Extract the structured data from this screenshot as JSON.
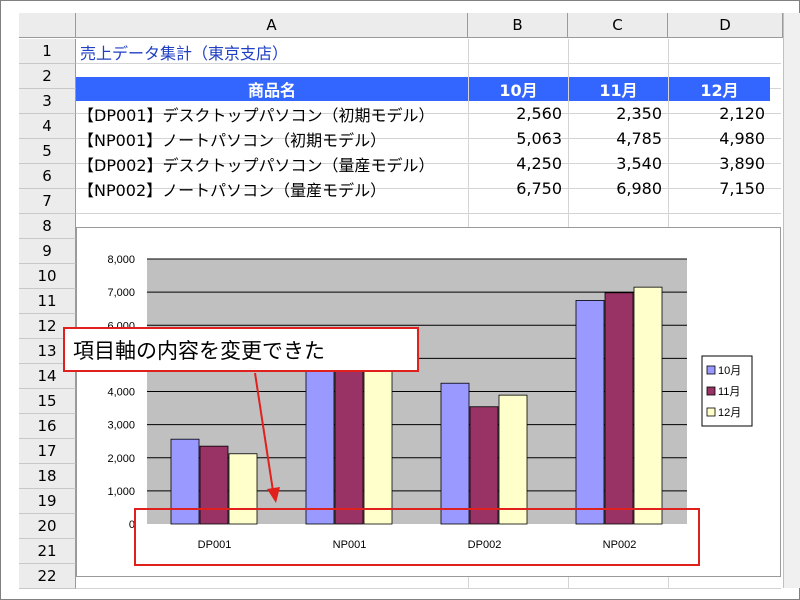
{
  "columns": [
    "A",
    "B",
    "C",
    "D"
  ],
  "rows": [
    "1",
    "2",
    "3",
    "4",
    "5",
    "6",
    "7",
    "8",
    "9",
    "10",
    "11",
    "12",
    "13",
    "14",
    "15",
    "16",
    "17",
    "18",
    "19",
    "20",
    "21",
    "22"
  ],
  "title": "売上データ集計（東京支店）",
  "table": {
    "header": [
      "商品名",
      "10月",
      "11月",
      "12月"
    ],
    "rows": [
      {
        "name": "【DP001】デスクトップパソコン（初期モデル）",
        "values": [
          "2,560",
          "2,350",
          "2,120"
        ]
      },
      {
        "name": "【NP001】ノートパソコン（初期モデル）",
        "values": [
          "5,063",
          "4,785",
          "4,980"
        ]
      },
      {
        "name": "【DP002】デスクトップパソコン（量産モデル）",
        "values": [
          "4,250",
          "3,540",
          "3,890"
        ]
      },
      {
        "name": "【NP002】ノートパソコン（量産モデル）",
        "values": [
          "6,750",
          "6,980",
          "7,150"
        ]
      }
    ]
  },
  "callout_text": "項目軸の内容を変更できた",
  "colors": {
    "header_bg": "#3366ff",
    "title_text": "#1f3fc4",
    "series_10": "#9999ff",
    "series_11": "#993366",
    "series_12": "#ffffcc",
    "plot_bg": "#c0c0c0",
    "highlight": "#e0201c"
  },
  "chart_data": {
    "type": "bar",
    "categories": [
      "DP001",
      "NP001",
      "DP002",
      "NP002"
    ],
    "series": [
      {
        "name": "10月",
        "values": [
          2560,
          5063,
          4250,
          6750
        ]
      },
      {
        "name": "11月",
        "values": [
          2350,
          4785,
          3540,
          6980
        ]
      },
      {
        "name": "12月",
        "values": [
          2120,
          4980,
          3890,
          7150
        ]
      }
    ],
    "yticks": [
      "8,000",
      "7,000",
      "6,000",
      "5,000",
      "4,000",
      "3,000",
      "2,000",
      "1,000",
      "0"
    ],
    "ylim": [
      0,
      8000
    ],
    "grid": true,
    "legend_position": "right"
  }
}
